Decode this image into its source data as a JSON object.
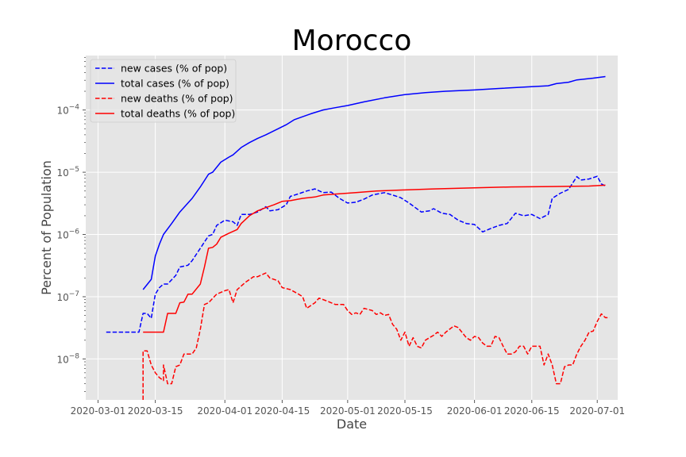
{
  "chart_data": {
    "type": "line",
    "title": "Morocco",
    "xlabel": "Date",
    "ylabel": "Percent of Population",
    "yscale": "log",
    "xlim": [
      "2020-02-27",
      "2020-07-06"
    ],
    "ylim": [
      2.2e-09,
      0.00075
    ],
    "grid": true,
    "legend_position": "top-left",
    "x_ticks": [
      "2020-03-01",
      "2020-03-15",
      "2020-04-01",
      "2020-04-15",
      "2020-05-01",
      "2020-05-15",
      "2020-06-01",
      "2020-06-15",
      "2020-07-01"
    ],
    "y_ticks": [
      {
        "value": 1e-08,
        "base": "10",
        "exp": "−8"
      },
      {
        "value": 1e-07,
        "base": "10",
        "exp": "−7"
      },
      {
        "value": 1e-06,
        "base": "10",
        "exp": "−6"
      },
      {
        "value": 1e-05,
        "base": "10",
        "exp": "−5"
      },
      {
        "value": 0.0001,
        "base": "10",
        "exp": "−4"
      }
    ],
    "series": [
      {
        "name": "new cases (% of pop)",
        "color": "#0000ff",
        "style": "dashed",
        "points": [
          [
            "2020-03-03",
            2.7e-08
          ],
          [
            "2020-03-08",
            2.7e-08
          ],
          [
            "2020-03-10",
            2.7e-08
          ],
          [
            "2020-03-11",
            2.7e-08
          ],
          [
            "2020-03-12",
            5.4e-08
          ],
          [
            "2020-03-13",
            5.4e-08
          ],
          [
            "2020-03-14",
            4.5e-08
          ],
          [
            "2020-03-15",
            1.1e-07
          ],
          [
            "2020-03-16",
            1.4e-07
          ],
          [
            "2020-03-17",
            1.6e-07
          ],
          [
            "2020-03-18",
            1.6e-07
          ],
          [
            "2020-03-20",
            2.2e-07
          ],
          [
            "2020-03-21",
            3e-07
          ],
          [
            "2020-03-23",
            3.2e-07
          ],
          [
            "2020-03-24",
            3.8e-07
          ],
          [
            "2020-03-26",
            6e-07
          ],
          [
            "2020-03-28",
            9.5e-07
          ],
          [
            "2020-03-29",
            1e-06
          ],
          [
            "2020-03-30",
            1.4e-06
          ],
          [
            "2020-04-01",
            1.7e-06
          ],
          [
            "2020-04-03",
            1.6e-06
          ],
          [
            "2020-04-04",
            1.4e-06
          ],
          [
            "2020-04-05",
            2.1e-06
          ],
          [
            "2020-04-07",
            2.1e-06
          ],
          [
            "2020-04-09",
            2.3e-06
          ],
          [
            "2020-04-11",
            2.8e-06
          ],
          [
            "2020-04-12",
            2.4e-06
          ],
          [
            "2020-04-14",
            2.5e-06
          ],
          [
            "2020-04-16",
            3e-06
          ],
          [
            "2020-04-17",
            4.1e-06
          ],
          [
            "2020-04-19",
            4.5e-06
          ],
          [
            "2020-04-21",
            5e-06
          ],
          [
            "2020-04-23",
            5.4e-06
          ],
          [
            "2020-04-25",
            4.7e-06
          ],
          [
            "2020-04-27",
            4.8e-06
          ],
          [
            "2020-04-29",
            3.8e-06
          ],
          [
            "2020-05-01",
            3.2e-06
          ],
          [
            "2020-05-03",
            3.3e-06
          ],
          [
            "2020-05-05",
            3.7e-06
          ],
          [
            "2020-05-07",
            4.3e-06
          ],
          [
            "2020-05-10",
            4.7e-06
          ],
          [
            "2020-05-12",
            4.3e-06
          ],
          [
            "2020-05-14",
            3.9e-06
          ],
          [
            "2020-05-16",
            3.2e-06
          ],
          [
            "2020-05-19",
            2.3e-06
          ],
          [
            "2020-05-21",
            2.4e-06
          ],
          [
            "2020-05-22",
            2.6e-06
          ],
          [
            "2020-05-24",
            2.2e-06
          ],
          [
            "2020-05-26",
            2.1e-06
          ],
          [
            "2020-05-28",
            1.7e-06
          ],
          [
            "2020-05-30",
            1.5e-06
          ],
          [
            "2020-06-01",
            1.45e-06
          ],
          [
            "2020-06-03",
            1.1e-06
          ],
          [
            "2020-06-05",
            1.25e-06
          ],
          [
            "2020-06-07",
            1.4e-06
          ],
          [
            "2020-06-09",
            1.5e-06
          ],
          [
            "2020-06-11",
            2.2e-06
          ],
          [
            "2020-06-13",
            2e-06
          ],
          [
            "2020-06-15",
            2.1e-06
          ],
          [
            "2020-06-17",
            1.8e-06
          ],
          [
            "2020-06-19",
            2.1e-06
          ],
          [
            "2020-06-20",
            3.8e-06
          ],
          [
            "2020-06-22",
            4.6e-06
          ],
          [
            "2020-06-24",
            5.3e-06
          ],
          [
            "2020-06-26",
            8.5e-06
          ],
          [
            "2020-06-27",
            7.5e-06
          ],
          [
            "2020-06-29",
            7.8e-06
          ],
          [
            "2020-07-01",
            8.6e-06
          ],
          [
            "2020-07-02",
            6.5e-06
          ],
          [
            "2020-07-03",
            6e-06
          ]
        ]
      },
      {
        "name": "total cases (% of pop)",
        "color": "#0000ff",
        "style": "solid",
        "points": [
          [
            "2020-03-12",
            1.3e-07
          ],
          [
            "2020-03-14",
            1.9e-07
          ],
          [
            "2020-03-15",
            4.5e-07
          ],
          [
            "2020-03-16",
            7e-07
          ],
          [
            "2020-03-17",
            1e-06
          ],
          [
            "2020-03-19",
            1.5e-06
          ],
          [
            "2020-03-21",
            2.3e-06
          ],
          [
            "2020-03-24",
            3.8e-06
          ],
          [
            "2020-03-26",
            5.8e-06
          ],
          [
            "2020-03-28",
            9.3e-06
          ],
          [
            "2020-03-29",
            1e-05
          ],
          [
            "2020-03-31",
            1.45e-05
          ],
          [
            "2020-04-02",
            1.75e-05
          ],
          [
            "2020-04-03",
            1.9e-05
          ],
          [
            "2020-04-05",
            2.5e-05
          ],
          [
            "2020-04-07",
            3e-05
          ],
          [
            "2020-04-09",
            3.5e-05
          ],
          [
            "2020-04-11",
            4e-05
          ],
          [
            "2020-04-14",
            5e-05
          ],
          [
            "2020-04-16",
            5.8e-05
          ],
          [
            "2020-04-18",
            7e-05
          ],
          [
            "2020-04-20",
            7.8e-05
          ],
          [
            "2020-04-22",
            8.7e-05
          ],
          [
            "2020-04-25",
            0.0001
          ],
          [
            "2020-04-28",
            0.000109
          ],
          [
            "2020-05-01",
            0.000118
          ],
          [
            "2020-05-05",
            0.000135
          ],
          [
            "2020-05-10",
            0.000157
          ],
          [
            "2020-05-15",
            0.000177
          ],
          [
            "2020-05-20",
            0.00019
          ],
          [
            "2020-05-25",
            0.0002
          ],
          [
            "2020-06-01",
            0.00021
          ],
          [
            "2020-06-07",
            0.000222
          ],
          [
            "2020-06-14",
            0.000235
          ],
          [
            "2020-06-19",
            0.000245
          ],
          [
            "2020-06-21",
            0.000265
          ],
          [
            "2020-06-24",
            0.00028
          ],
          [
            "2020-06-26",
            0.000305
          ],
          [
            "2020-06-30",
            0.000325
          ],
          [
            "2020-07-03",
            0.000345
          ]
        ]
      },
      {
        "name": "new deaths (% of pop)",
        "color": "#ff0000",
        "style": "dashed",
        "points": [
          [
            "2020-03-12",
            2.2e-09
          ],
          [
            "2020-03-12",
            1.35e-08
          ],
          [
            "2020-03-13",
            1.35e-08
          ],
          [
            "2020-03-14",
            8e-09
          ],
          [
            "2020-03-15",
            6e-09
          ],
          [
            "2020-03-16",
            5e-09
          ],
          [
            "2020-03-17",
            4.5e-09
          ],
          [
            "2020-03-17",
            8e-09
          ],
          [
            "2020-03-18",
            4e-09
          ],
          [
            "2020-03-19",
            4e-09
          ],
          [
            "2020-03-20",
            7.5e-09
          ],
          [
            "2020-03-21",
            8e-09
          ],
          [
            "2020-03-22",
            1.2e-08
          ],
          [
            "2020-03-23",
            1.2e-08
          ],
          [
            "2020-03-24",
            1.2e-08
          ],
          [
            "2020-03-25",
            1.5e-08
          ],
          [
            "2020-03-26",
            3e-08
          ],
          [
            "2020-03-27",
            7.5e-08
          ],
          [
            "2020-03-28",
            8e-08
          ],
          [
            "2020-03-30",
            1.1e-07
          ],
          [
            "2020-04-01",
            1.25e-07
          ],
          [
            "2020-04-02",
            1.3e-07
          ],
          [
            "2020-04-03",
            8e-08
          ],
          [
            "2020-04-04",
            1.3e-07
          ],
          [
            "2020-04-06",
            1.7e-07
          ],
          [
            "2020-04-08",
            2.1e-07
          ],
          [
            "2020-04-09",
            2.1e-07
          ],
          [
            "2020-04-11",
            2.4e-07
          ],
          [
            "2020-04-12",
            2e-07
          ],
          [
            "2020-04-14",
            1.8e-07
          ],
          [
            "2020-04-15",
            1.4e-07
          ],
          [
            "2020-04-17",
            1.3e-07
          ],
          [
            "2020-04-19",
            1.1e-07
          ],
          [
            "2020-04-20",
            1e-07
          ],
          [
            "2020-04-21",
            6.5e-08
          ],
          [
            "2020-04-23",
            8e-08
          ],
          [
            "2020-04-24",
            9.5e-08
          ],
          [
            "2020-04-26",
            8.5e-08
          ],
          [
            "2020-04-28",
            7.5e-08
          ],
          [
            "2020-04-30",
            7.5e-08
          ],
          [
            "2020-05-01",
            6e-08
          ],
          [
            "2020-05-02",
            5.2e-08
          ],
          [
            "2020-05-03",
            5.5e-08
          ],
          [
            "2020-05-04",
            5.2e-08
          ],
          [
            "2020-05-05",
            6.5e-08
          ],
          [
            "2020-05-07",
            6e-08
          ],
          [
            "2020-05-08",
            5.2e-08
          ],
          [
            "2020-05-09",
            5.5e-08
          ],
          [
            "2020-05-10",
            5e-08
          ],
          [
            "2020-05-11",
            5.2e-08
          ],
          [
            "2020-05-12",
            3.6e-08
          ],
          [
            "2020-05-13",
            3e-08
          ],
          [
            "2020-05-14",
            2e-08
          ],
          [
            "2020-05-15",
            2.7e-08
          ],
          [
            "2020-05-16",
            1.6e-08
          ],
          [
            "2020-05-17",
            2.2e-08
          ],
          [
            "2020-05-18",
            1.6e-08
          ],
          [
            "2020-05-19",
            1.5e-08
          ],
          [
            "2020-05-20",
            2e-08
          ],
          [
            "2020-05-21",
            2.2e-08
          ],
          [
            "2020-05-22",
            2.4e-08
          ],
          [
            "2020-05-23",
            2.7e-08
          ],
          [
            "2020-05-24",
            2.3e-08
          ],
          [
            "2020-05-25",
            2.7e-08
          ],
          [
            "2020-05-27",
            3.4e-08
          ],
          [
            "2020-05-28",
            3.2e-08
          ],
          [
            "2020-05-30",
            2.2e-08
          ],
          [
            "2020-05-31",
            2e-08
          ],
          [
            "2020-06-01",
            2.3e-08
          ],
          [
            "2020-06-02",
            2.2e-08
          ],
          [
            "2020-06-03",
            1.8e-08
          ],
          [
            "2020-06-04",
            1.6e-08
          ],
          [
            "2020-06-05",
            1.6e-08
          ],
          [
            "2020-06-06",
            2.3e-08
          ],
          [
            "2020-06-07",
            2.2e-08
          ],
          [
            "2020-06-08",
            1.6e-08
          ],
          [
            "2020-06-09",
            1.2e-08
          ],
          [
            "2020-06-10",
            1.2e-08
          ],
          [
            "2020-06-11",
            1.3e-08
          ],
          [
            "2020-06-12",
            1.6e-08
          ],
          [
            "2020-06-13",
            1.6e-08
          ],
          [
            "2020-06-14",
            1.2e-08
          ],
          [
            "2020-06-15",
            1.6e-08
          ],
          [
            "2020-06-16",
            1.6e-08
          ],
          [
            "2020-06-17",
            1.6e-08
          ],
          [
            "2020-06-18",
            8e-09
          ],
          [
            "2020-06-19",
            1.2e-08
          ],
          [
            "2020-06-20",
            8e-09
          ],
          [
            "2020-06-21",
            4e-09
          ],
          [
            "2020-06-22",
            4e-09
          ],
          [
            "2020-06-23",
            7.5e-09
          ],
          [
            "2020-06-24",
            8e-09
          ],
          [
            "2020-06-25",
            8e-09
          ],
          [
            "2020-06-26",
            1.2e-08
          ],
          [
            "2020-06-27",
            1.6e-08
          ],
          [
            "2020-06-28",
            2e-08
          ],
          [
            "2020-06-29",
            2.7e-08
          ],
          [
            "2020-06-30",
            2.8e-08
          ],
          [
            "2020-07-01",
            4e-08
          ],
          [
            "2020-07-02",
            5.3e-08
          ],
          [
            "2020-07-03",
            4.6e-08
          ],
          [
            "2020-07-04",
            4.6e-08
          ]
        ]
      },
      {
        "name": "total deaths (% of pop)",
        "color": "#ff0000",
        "style": "solid",
        "points": [
          [
            "2020-03-12",
            2.7e-08
          ],
          [
            "2020-03-16",
            2.7e-08
          ],
          [
            "2020-03-17",
            2.7e-08
          ],
          [
            "2020-03-18",
            5.4e-08
          ],
          [
            "2020-03-20",
            5.4e-08
          ],
          [
            "2020-03-21",
            8e-08
          ],
          [
            "2020-03-22",
            8.2e-08
          ],
          [
            "2020-03-23",
            1.1e-07
          ],
          [
            "2020-03-24",
            1.1e-07
          ],
          [
            "2020-03-26",
            1.6e-07
          ],
          [
            "2020-03-27",
            3e-07
          ],
          [
            "2020-03-28",
            6e-07
          ],
          [
            "2020-03-29",
            6.2e-07
          ],
          [
            "2020-03-30",
            7e-07
          ],
          [
            "2020-03-31",
            9e-07
          ],
          [
            "2020-04-02",
            1.05e-06
          ],
          [
            "2020-04-04",
            1.2e-06
          ],
          [
            "2020-04-05",
            1.5e-06
          ],
          [
            "2020-04-07",
            2e-06
          ],
          [
            "2020-04-09",
            2.4e-06
          ],
          [
            "2020-04-11",
            2.7e-06
          ],
          [
            "2020-04-13",
            3e-06
          ],
          [
            "2020-04-15",
            3.4e-06
          ],
          [
            "2020-04-17",
            3.5e-06
          ],
          [
            "2020-04-20",
            3.8e-06
          ],
          [
            "2020-04-23",
            4e-06
          ],
          [
            "2020-04-25",
            4.3e-06
          ],
          [
            "2020-04-29",
            4.5e-06
          ],
          [
            "2020-05-03",
            4.7e-06
          ],
          [
            "2020-05-08",
            5e-06
          ],
          [
            "2020-05-15",
            5.2e-06
          ],
          [
            "2020-05-22",
            5.4e-06
          ],
          [
            "2020-06-01",
            5.6e-06
          ],
          [
            "2020-06-10",
            5.8e-06
          ],
          [
            "2020-06-20",
            5.9e-06
          ],
          [
            "2020-06-29",
            6e-06
          ],
          [
            "2020-07-03",
            6.2e-06
          ]
        ]
      }
    ]
  }
}
